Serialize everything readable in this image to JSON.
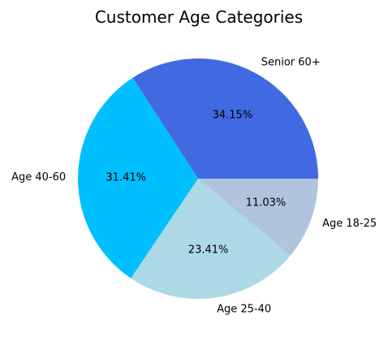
{
  "chart_data": {
    "type": "pie",
    "title": "Customer Age Categories",
    "categories": [
      "Senior 60+",
      "Age 40-60",
      "Age 25-40",
      "Age 18-25"
    ],
    "values": [
      34.15,
      31.41,
      23.41,
      11.03
    ],
    "labels": [
      "34.15%",
      "31.41%",
      "23.41%",
      "11.03%"
    ],
    "colors": [
      "#4169E1",
      "#00BFFF",
      "#ADD8E6",
      "#B0C4DE"
    ],
    "start_angle_deg": 0,
    "direction": "counterclockwise",
    "legend": "none"
  }
}
